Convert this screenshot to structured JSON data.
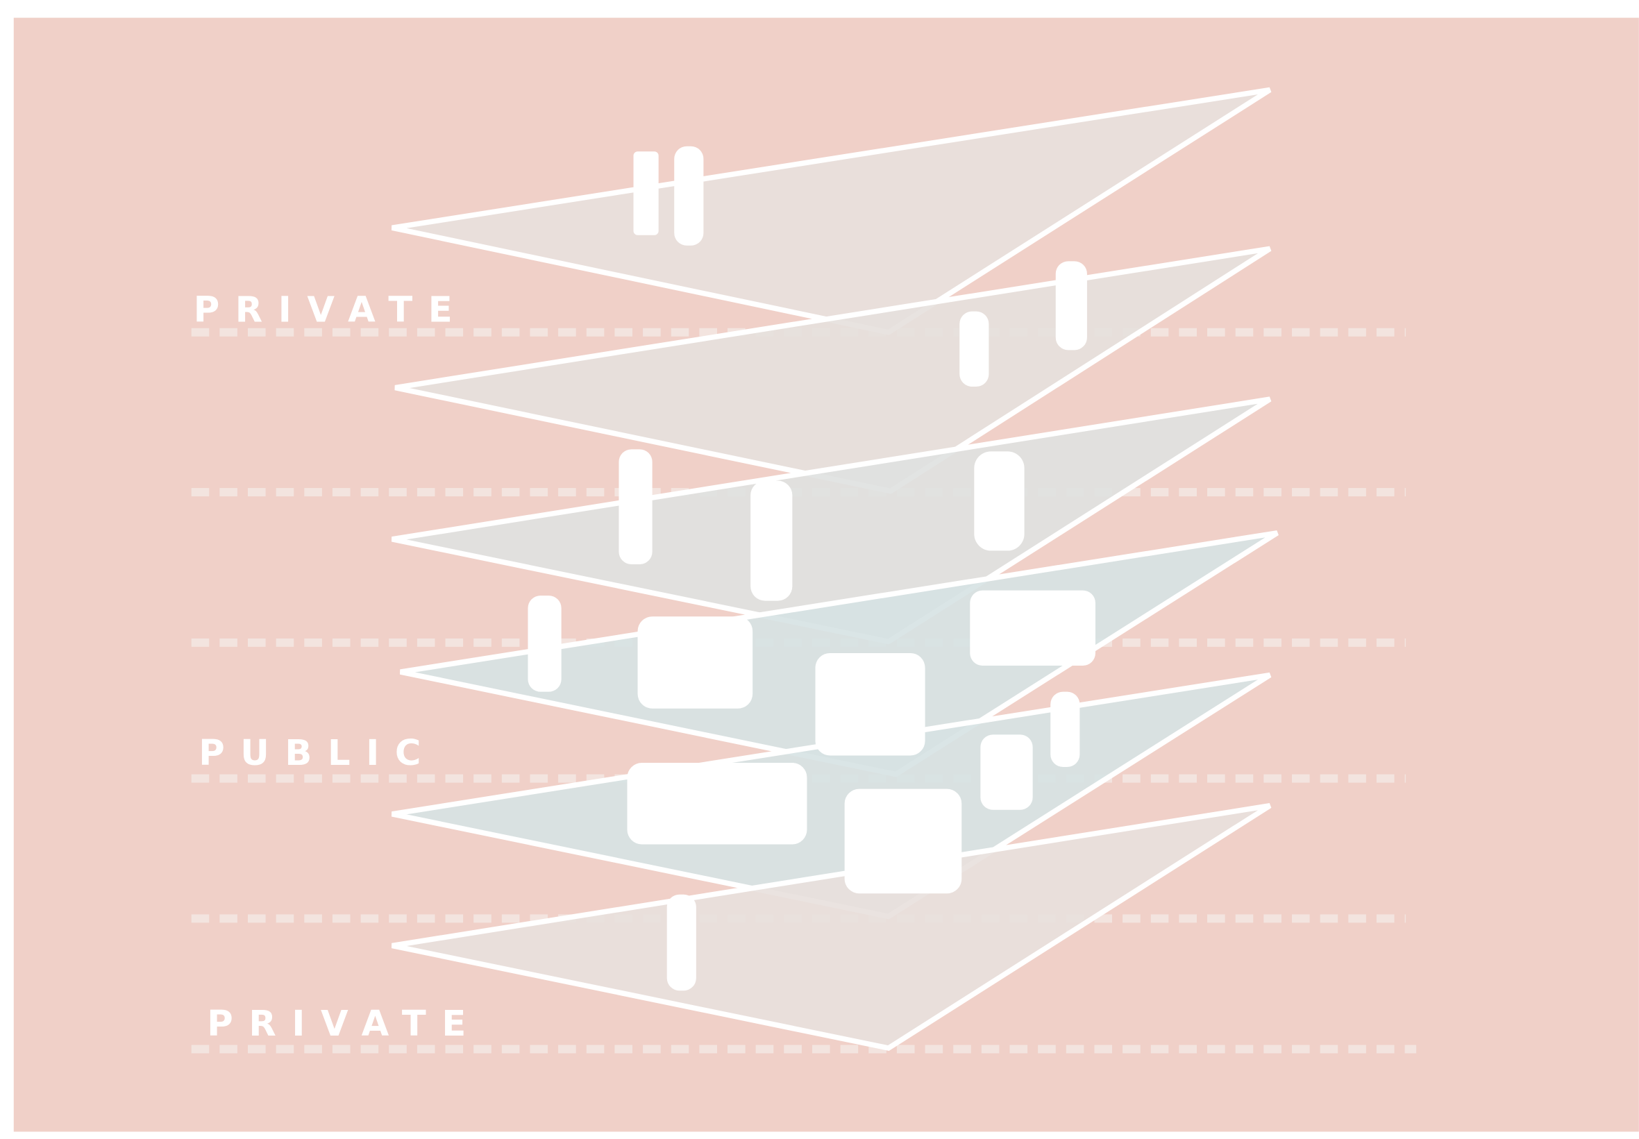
{
  "labels": [
    "PRIVATE",
    "PUBLIC",
    "PRIVATE"
  ]
}
